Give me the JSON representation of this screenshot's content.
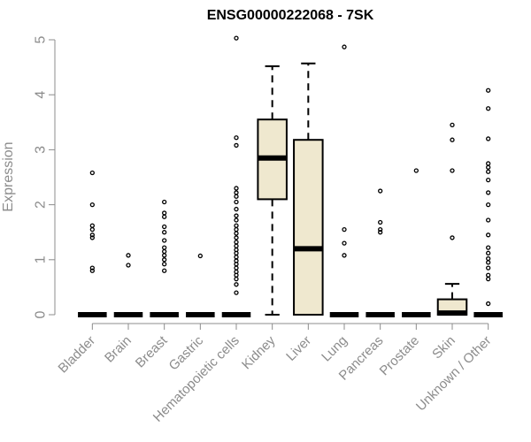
{
  "chart_data": {
    "type": "boxplot",
    "title": "ENSG00000222068 - 7SK",
    "ylabel": "Expression",
    "xlabel": "",
    "ylim": [
      0,
      5
    ],
    "yticks": [
      0,
      1,
      2,
      3,
      4,
      5
    ],
    "grid": false,
    "colors": {
      "box_fill": "#efe8cf",
      "line": "#000000",
      "axis": "#8c8c8c"
    },
    "categories": [
      "Bladder",
      "Brain",
      "Breast",
      "Gastric",
      "Hematopoietic cells",
      "Kidney",
      "Liver",
      "Lung",
      "Pancreas",
      "Prostate",
      "Skin",
      "Unknown / Other"
    ],
    "boxes": [
      {
        "name": "Bladder",
        "whisker_low": 0,
        "q1": 0,
        "median": 0,
        "q3": 0,
        "whisker_high": 0,
        "outliers": [
          0.8,
          0.85,
          1.4,
          1.45,
          1.55,
          1.62,
          2.0,
          2.58
        ]
      },
      {
        "name": "Brain",
        "whisker_low": 0,
        "q1": 0,
        "median": 0,
        "q3": 0,
        "whisker_high": 0,
        "outliers": [
          0.9,
          1.08
        ]
      },
      {
        "name": "Breast",
        "whisker_low": 0,
        "q1": 0,
        "median": 0,
        "q3": 0,
        "whisker_high": 0,
        "outliers": [
          0.8,
          0.92,
          1.0,
          1.08,
          1.15,
          1.22,
          1.35,
          1.5,
          1.6,
          1.78,
          1.85,
          2.05
        ]
      },
      {
        "name": "Gastric",
        "whisker_low": 0,
        "q1": 0,
        "median": 0,
        "q3": 0,
        "whisker_high": 0,
        "outliers": [
          1.07
        ]
      },
      {
        "name": "Hematopoietic cells",
        "whisker_low": 0,
        "q1": 0,
        "median": 0,
        "q3": 0,
        "whisker_high": 0,
        "outliers": [
          0.4,
          0.55,
          0.65,
          0.72,
          0.78,
          0.85,
          0.92,
          0.98,
          1.05,
          1.12,
          1.18,
          1.25,
          1.32,
          1.4,
          1.48,
          1.55,
          1.62,
          1.72,
          1.8,
          1.92,
          2.05,
          2.15,
          2.22,
          2.3,
          3.08,
          3.22,
          5.03
        ]
      },
      {
        "name": "Kidney",
        "whisker_low": 0,
        "q1": 2.1,
        "median": 2.85,
        "q3": 3.55,
        "whisker_high": 4.52,
        "outliers": []
      },
      {
        "name": "Liver",
        "whisker_low": 0,
        "q1": 0,
        "median": 1.2,
        "q3": 3.18,
        "whisker_high": 4.57,
        "outliers": []
      },
      {
        "name": "Lung",
        "whisker_low": 0,
        "q1": 0,
        "median": 0,
        "q3": 0,
        "whisker_high": 0,
        "outliers": [
          1.08,
          1.3,
          1.55,
          4.87
        ]
      },
      {
        "name": "Pancreas",
        "whisker_low": 0,
        "q1": 0,
        "median": 0,
        "q3": 0,
        "whisker_high": 0,
        "outliers": [
          1.5,
          1.55,
          1.68,
          2.25
        ]
      },
      {
        "name": "Prostate",
        "whisker_low": 0,
        "q1": 0,
        "median": 0,
        "q3": 0,
        "whisker_high": 0,
        "outliers": [
          2.62
        ]
      },
      {
        "name": "Skin",
        "whisker_low": 0,
        "q1": 0,
        "median": 0.03,
        "q3": 0.28,
        "whisker_high": 0.56,
        "outliers": [
          1.4,
          2.62,
          3.18,
          3.45
        ]
      },
      {
        "name": "Unknown / Other",
        "whisker_low": 0,
        "q1": 0,
        "median": 0,
        "q3": 0,
        "whisker_high": 0,
        "outliers": [
          0.2,
          0.65,
          0.72,
          0.85,
          0.95,
          1.02,
          1.12,
          1.22,
          1.45,
          1.72,
          2.0,
          2.22,
          2.45,
          2.6,
          2.68,
          2.75,
          3.2,
          3.75,
          4.08
        ]
      }
    ]
  }
}
